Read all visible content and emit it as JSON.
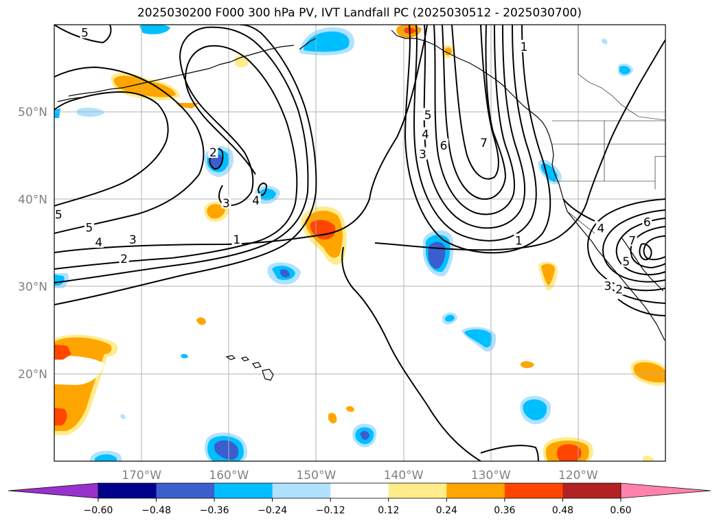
{
  "title": "2025030200 F000 300 hPa PV, IVT Landfall PC (2025030512 - 2025030700)",
  "axes": {
    "lat_labels": [
      {
        "text": "50°N",
        "lat": 50
      },
      {
        "text": "40°N",
        "lat": 40
      },
      {
        "text": "30°N",
        "lat": 30
      },
      {
        "text": "20°N",
        "lat": 20
      }
    ],
    "lon_labels": [
      {
        "text": "170°W",
        "lon": -170
      },
      {
        "text": "160°W",
        "lon": -160
      },
      {
        "text": "150°W",
        "lon": -150
      },
      {
        "text": "140°W",
        "lon": -140
      },
      {
        "text": "130°W",
        "lon": -130
      },
      {
        "text": "120°W",
        "lon": -120
      }
    ],
    "lon_range": [
      -180,
      -110
    ],
    "lat_range": [
      10,
      60
    ],
    "grid": true
  },
  "colorbar": {
    "colors": [
      "#9932cc",
      "#00008b",
      "#3a5fcd",
      "#00bfff",
      "#b0e2ff",
      "#ffffff",
      "#ffec8b",
      "#ffa500",
      "#ff4500",
      "#b22222",
      "#ff82ab"
    ],
    "tick_labels": [
      "−0.60",
      "−0.48",
      "−0.36",
      "−0.24",
      "−0.12",
      "0.12",
      "0.24",
      "0.36",
      "0.48",
      "0.60"
    ],
    "extend": "both"
  },
  "contour_labels": [
    {
      "text": "5",
      "lon": -176.5,
      "lat": 59
    },
    {
      "text": "5",
      "lon": -179.5,
      "lat": 38.2
    },
    {
      "text": "5",
      "lon": -176,
      "lat": 36.7
    },
    {
      "text": "4",
      "lon": -174.9,
      "lat": 35
    },
    {
      "text": "3",
      "lon": -171,
      "lat": 35.3
    },
    {
      "text": "2",
      "lon": -172,
      "lat": 33.1
    },
    {
      "text": "1",
      "lon": -159.1,
      "lat": 35.3
    },
    {
      "text": "3",
      "lon": -160.3,
      "lat": 39.5
    },
    {
      "text": "2",
      "lon": -161.8,
      "lat": 45.3
    },
    {
      "text": "4",
      "lon": -156.9,
      "lat": 39.8
    },
    {
      "text": "5",
      "lon": -137.2,
      "lat": 49.6
    },
    {
      "text": "4",
      "lon": -137.5,
      "lat": 47.4
    },
    {
      "text": "3",
      "lon": -137.8,
      "lat": 45.1
    },
    {
      "text": "6",
      "lon": -135.4,
      "lat": 46.1
    },
    {
      "text": "7",
      "lon": -130.8,
      "lat": 46.4
    },
    {
      "text": "1",
      "lon": -126.2,
      "lat": 57.4
    },
    {
      "text": "1",
      "lon": -126.8,
      "lat": 35.2
    },
    {
      "text": "6",
      "lon": -112.1,
      "lat": 37.3
    },
    {
      "text": "7",
      "lon": -113.8,
      "lat": 35.2
    },
    {
      "text": "4",
      "lon": -117.4,
      "lat": 36.6
    },
    {
      "text": "5",
      "lon": -114.5,
      "lat": 32.8
    },
    {
      "text": "3",
      "lon": -116.6,
      "lat": 30
    },
    {
      "text": "2",
      "lon": -115.3,
      "lat": 29.6
    }
  ]
}
